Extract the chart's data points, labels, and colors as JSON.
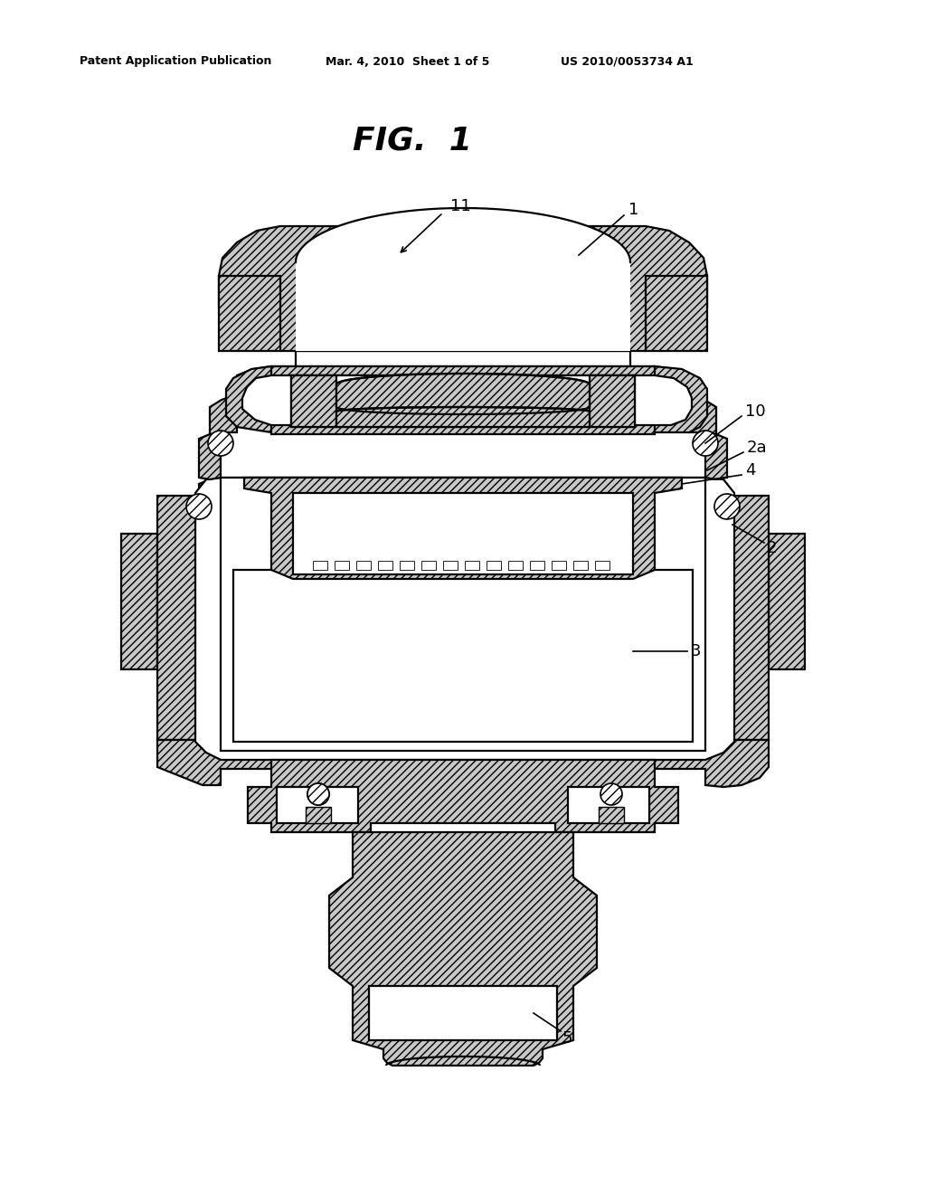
{
  "title": "FIG.  1",
  "header_left": "Patent Application Publication",
  "header_mid": "Mar. 4, 2010  Sheet 1 of 5",
  "header_right": "US 2010/0053734 A1",
  "bg_color": "#ffffff",
  "line_color": "#000000",
  "fig_width": 10.24,
  "fig_height": 13.2,
  "dpi": 100
}
